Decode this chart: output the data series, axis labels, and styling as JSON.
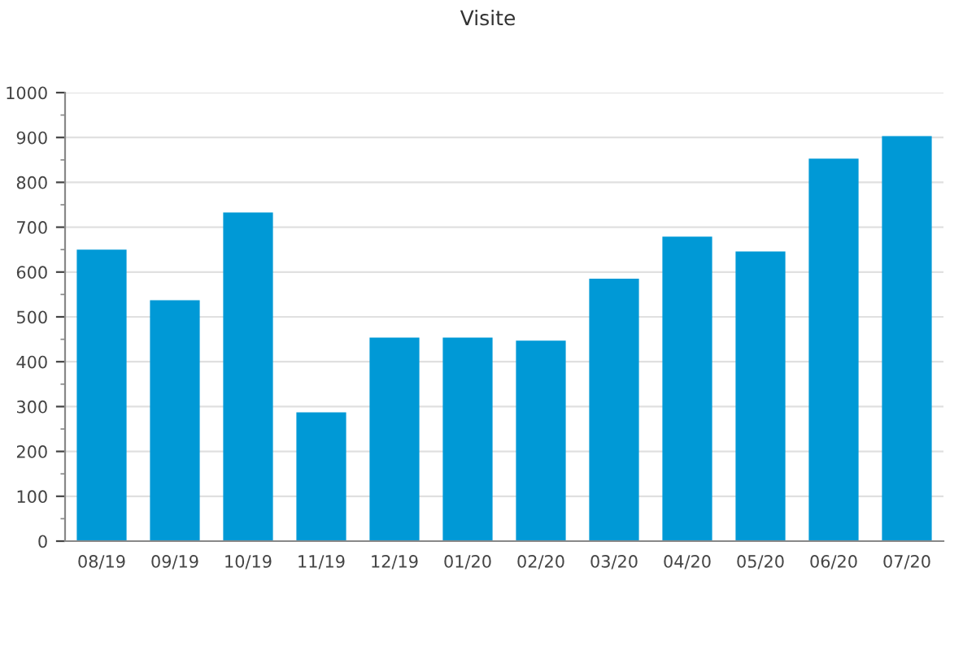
{
  "chart_data": {
    "type": "bar",
    "title": "Visite",
    "categories": [
      "08/19",
      "09/19",
      "10/19",
      "11/19",
      "12/19",
      "01/20",
      "02/20",
      "03/20",
      "04/20",
      "05/20",
      "06/20",
      "07/20"
    ],
    "values": [
      650,
      537,
      733,
      287,
      454,
      454,
      447,
      585,
      679,
      646,
      853,
      903
    ],
    "color": "#0099d6",
    "ylim": [
      0,
      1000
    ],
    "yticks": [
      0,
      100,
      200,
      300,
      400,
      500,
      600,
      700,
      800,
      900,
      1000
    ],
    "grid": "y"
  }
}
